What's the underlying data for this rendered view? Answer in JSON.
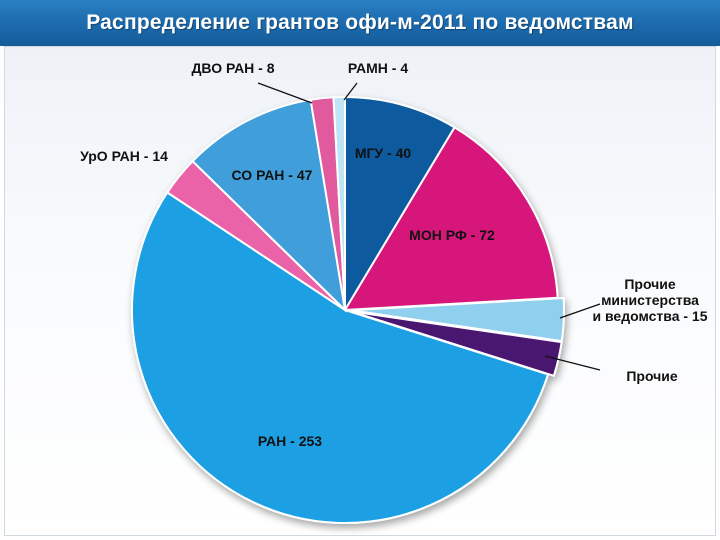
{
  "title": "Распределение грантов офи-м-2011 по ведомствам",
  "chart_data": {
    "type": "pie",
    "slices": [
      {
        "label": "МГУ - 40",
        "value": 40,
        "color": "#0b5a9e"
      },
      {
        "label": "МОН РФ - 72",
        "value": 72,
        "color": "#d6157a"
      },
      {
        "label": "Прочие министерства и ведомства - 15",
        "label_lines": [
          "Прочие",
          "министерства",
          "и ведомства - 15"
        ],
        "value": 15,
        "color": "#8fd0ee"
      },
      {
        "label": "Прочие",
        "value": 12,
        "color": "#4a1370"
      },
      {
        "label": "РАН - 253",
        "value": 253,
        "color": "#1ba0e3"
      },
      {
        "label": "УрО РАН - 14",
        "value": 14,
        "color": "#ea63a8"
      },
      {
        "label": "СО РАН - 47",
        "value": 47,
        "color": "#3f9fdb"
      },
      {
        "label": "ДВО РАН - 8",
        "value": 8,
        "color": "#e25a9e"
      },
      {
        "label": "РАМН - 4",
        "value": 4,
        "color": "#bfe4f6"
      }
    ]
  }
}
